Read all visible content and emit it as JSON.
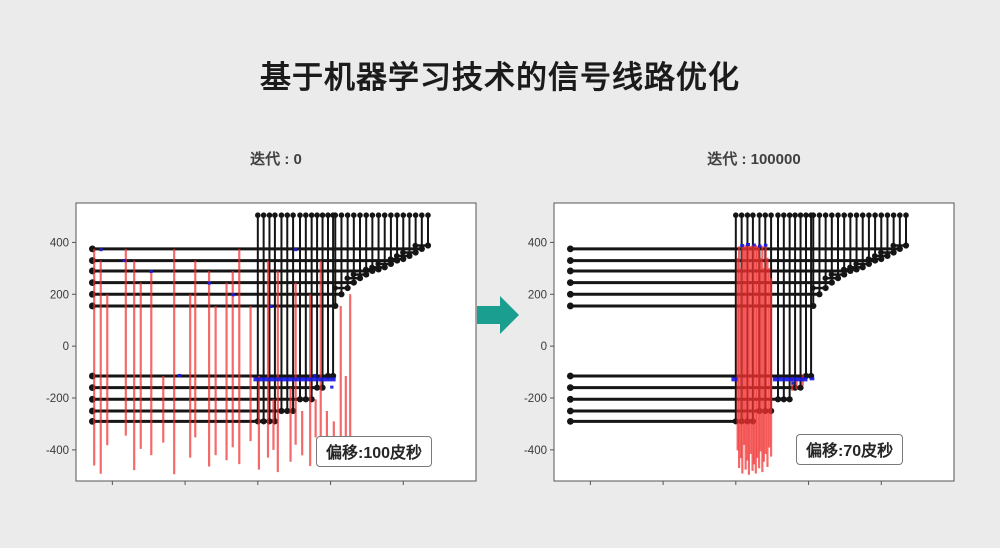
{
  "page": {
    "title": "基于机器学习技术的信号线路优化",
    "background": "#ebebeb"
  },
  "arrow": {
    "color": "#1a9e8f"
  },
  "chart_data": {
    "type": "line",
    "subtype": "signal-routing-stem-plot",
    "title": "基于机器学习技术的信号线路优化",
    "axes": {
      "xlim": [
        -4300,
        -3200
      ],
      "ylim": [
        -520,
        552
      ],
      "xticks": [
        -4200,
        -4000,
        -3800,
        -3600,
        -3400
      ],
      "yticks": [
        400,
        200,
        0,
        -200,
        -400
      ],
      "grid": false,
      "legend": "none"
    },
    "colors": {
      "black": "#151515",
      "red": "#f03030",
      "blue": "#1a1adf",
      "spine": "#555555",
      "plot_bg": "#ffffff",
      "tick_label": "#3a3a3a"
    },
    "skeleton": {
      "x_left": -4255,
      "top_y": 505,
      "tail_len": 35,
      "lines": [
        {
          "y": 375,
          "x_right": -3349
        },
        {
          "y": 330,
          "x_right": -3417
        },
        {
          "y": 290,
          "x_right": -3485
        },
        {
          "y": 245,
          "x_right": -3536
        },
        {
          "y": 200,
          "x_right": -3570
        },
        {
          "y": 155,
          "x_right": -3587
        },
        {
          "y": -115,
          "x_right": -3593
        },
        {
          "y": -160,
          "x_right": -3622
        },
        {
          "y": -205,
          "x_right": -3652
        },
        {
          "y": -250,
          "x_right": -3703
        },
        {
          "y": -290,
          "x_right": -3753
        }
      ],
      "stems": [
        {
          "x": -3332,
          "y": 388,
          "tail": true
        },
        {
          "x": -3349,
          "y": 375
        },
        {
          "x": -3366,
          "y": 361,
          "tail": true
        },
        {
          "x": -3383,
          "y": 348,
          "tail": true
        },
        {
          "x": -3400,
          "y": 336,
          "tail": true
        },
        {
          "x": -3417,
          "y": 330
        },
        {
          "x": -3434,
          "y": 317,
          "tail": true
        },
        {
          "x": -3451,
          "y": 304,
          "tail": true
        },
        {
          "x": -3468,
          "y": 296,
          "tail": true
        },
        {
          "x": -3485,
          "y": 290
        },
        {
          "x": -3502,
          "y": 276,
          "tail": true
        },
        {
          "x": -3519,
          "y": 262,
          "tail": true
        },
        {
          "x": -3536,
          "y": 245
        },
        {
          "x": -3553,
          "y": 224,
          "tail": true
        },
        {
          "x": -3570,
          "y": 200
        },
        {
          "x": -3587,
          "y": 155
        },
        {
          "x": -3593,
          "y": -115
        },
        {
          "x": -3607,
          "y": -115
        },
        {
          "x": -3622,
          "y": -160
        },
        {
          "x": -3637,
          "y": -160
        },
        {
          "x": -3652,
          "y": -205
        },
        {
          "x": -3668,
          "y": -205
        },
        {
          "x": -3684,
          "y": -205
        },
        {
          "x": -3703,
          "y": -250
        },
        {
          "x": -3719,
          "y": -250
        },
        {
          "x": -3735,
          "y": -250
        },
        {
          "x": -3753,
          "y": -290
        },
        {
          "x": -3768,
          "y": -290
        },
        {
          "x": -3784,
          "y": -290
        },
        {
          "x": -3800,
          "y": -290
        }
      ]
    },
    "charts": [
      {
        "title": "迭代 : 0",
        "iteration": 0,
        "annotation_label": "偏移:100皮秒",
        "offset_ps": 100,
        "red_spikes": [
          [
            -4250,
            375,
            -460
          ],
          [
            -4232,
            330,
            -492
          ],
          [
            -4214,
            200,
            -382
          ],
          [
            -4163,
            375,
            -345
          ],
          [
            -4140,
            330,
            -478
          ],
          [
            -4122,
            245,
            -396
          ],
          [
            -4093,
            290,
            -420
          ],
          [
            -4060,
            -115,
            -372
          ],
          [
            -4030,
            375,
            -494
          ],
          [
            -3986,
            200,
            -430
          ],
          [
            -3972,
            330,
            -352
          ],
          [
            -3934,
            290,
            -464
          ],
          [
            -3916,
            155,
            -420
          ],
          [
            -3886,
            245,
            -440
          ],
          [
            -3869,
            290,
            -390
          ],
          [
            -3851,
            375,
            -455
          ],
          [
            -3820,
            155,
            -366
          ],
          [
            -3797,
            -115,
            -476
          ],
          [
            -3772,
            330,
            -430
          ],
          [
            -3757,
            -205,
            -400
          ],
          [
            -3745,
            290,
            -486
          ],
          [
            -3710,
            -160,
            -446
          ],
          [
            -3696,
            245,
            -380
          ],
          [
            -3678,
            -250,
            -421
          ],
          [
            -3656,
            200,
            -462
          ],
          [
            -3641,
            -205,
            -352
          ],
          [
            -3627,
            330,
            -432
          ],
          [
            -3610,
            -250,
            -390
          ],
          [
            -3591,
            -290,
            -466
          ],
          [
            -3572,
            155,
            -412
          ],
          [
            -3558,
            -115,
            -372
          ],
          [
            -3546,
            200,
            -436
          ]
        ],
        "blue_segments": [
          [
            -3812,
            -3586,
            -128,
            4
          ],
          [
            -4236,
            -4227,
            372,
            3
          ],
          [
            -4172,
            -4163,
            330,
            3
          ],
          [
            -4098,
            -4089,
            288,
            3
          ],
          [
            -4020,
            -4011,
            -113,
            3
          ],
          [
            -3938,
            -3929,
            243,
            3
          ],
          [
            -3872,
            -3863,
            198,
            3
          ],
          [
            -3768,
            -3759,
            153,
            3
          ],
          [
            -3700,
            -3691,
            372,
            3
          ],
          [
            -3648,
            -3639,
            -113,
            3
          ],
          [
            -3601,
            -3592,
            -158,
            3
          ]
        ]
      },
      {
        "title": "迭代 : 100000",
        "iteration": 100000,
        "annotation_label": "偏移:70皮秒",
        "offset_ps": 70,
        "red_spikes": [
          [
            -3795,
            340,
            -402
          ],
          [
            -3791,
            385,
            -470
          ],
          [
            -3786,
            302,
            -432
          ],
          [
            -3782,
            386,
            -491
          ],
          [
            -3777,
            384,
            -381
          ],
          [
            -3773,
            390,
            -476
          ],
          [
            -3768,
            385,
            -441
          ],
          [
            -3764,
            391,
            -496
          ],
          [
            -3759,
            386,
            -416
          ],
          [
            -3754,
            390,
            -481
          ],
          [
            -3750,
            385,
            -456
          ],
          [
            -3745,
            390,
            -491
          ],
          [
            -3741,
            386,
            -431
          ],
          [
            -3736,
            385,
            -471
          ],
          [
            -3732,
            341,
            -406
          ],
          [
            -3727,
            386,
            -486
          ],
          [
            -3723,
            302,
            -446
          ],
          [
            -3718,
            385,
            -416
          ],
          [
            -3713,
            341,
            -466
          ],
          [
            -3708,
            301,
            -391
          ],
          [
            -3703,
            262,
            -426
          ],
          [
            -3645,
            -120,
            -172
          ],
          [
            -3633,
            -133,
            -166
          ],
          [
            -3616,
            -110,
            -152
          ]
        ],
        "blue_segments": [
          [
            -3812,
            -3795,
            -128,
            4
          ],
          [
            -3698,
            -3603,
            -128,
            4
          ],
          [
            -3597,
            -3584,
            -126,
            3
          ],
          [
            -3788,
            -3777,
            388,
            3
          ],
          [
            -3772,
            -3761,
            392,
            3
          ],
          [
            -3754,
            -3745,
            390,
            3
          ],
          [
            -3739,
            -3729,
            386,
            3
          ],
          [
            -3723,
            -3713,
            389,
            3
          ],
          [
            -3647,
            -3639,
            -143,
            3
          ]
        ]
      }
    ]
  }
}
